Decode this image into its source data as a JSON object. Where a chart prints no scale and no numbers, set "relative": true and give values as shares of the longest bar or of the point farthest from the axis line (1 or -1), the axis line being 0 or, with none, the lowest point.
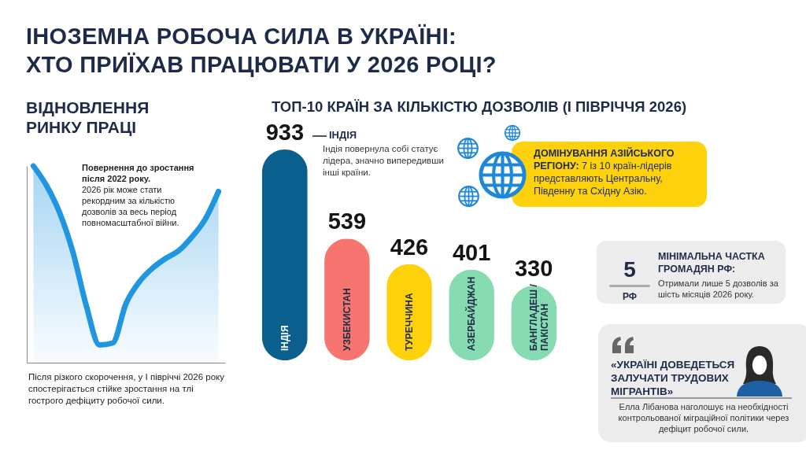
{
  "chart_data": [
    {
      "type": "area",
      "title": "ВІДНОВЛЕННЯ РИНКУ ПРАЦІ",
      "categories": [
        null,
        null,
        null,
        null,
        null,
        null,
        null,
        null,
        null,
        null,
        null,
        null,
        null,
        null,
        null
      ],
      "values": [
        1.0,
        0.9,
        0.76,
        0.56,
        0.29,
        0.09,
        0.1,
        0.3,
        0.41,
        0.48,
        0.53,
        0.57,
        0.64,
        0.73,
        0.87
      ],
      "color": "#2196e0",
      "relative": true,
      "annotations": [
        "Повернення до зростання після 2022 року.",
        "2026 рік може стати рекордним за кількістю дозволів за весь період повномасштабної війни.",
        "Після різкого скорочення, у І півріччі 2026 року спостерігається стійке зростання на тлі гострого дефіциту робочої сили."
      ]
    },
    {
      "type": "bar",
      "title": "ТОП-10 КРАЇН ЗА КІЛЬКІСТЮ ДОЗВОЛІВ (І ПІВРІЧЧЯ 2026)",
      "categories": [
        "ІНДІЯ",
        "УЗБЕКИСТАН",
        "ТУРЕЧЧИНА",
        "АЗЕРБАЙДЖАН",
        "БАНГЛАДЕШ / ПАКІСТАН"
      ],
      "values": [
        933,
        539,
        426,
        401,
        330
      ],
      "colors": [
        "#0b5f8c",
        "#f6766f",
        "#fdd10c",
        "#86dcb0",
        "#86dcb0"
      ],
      "data_labels": true,
      "annotations": [
        "ІНДІЯ",
        "Індія повернула собі статує лідера, значно випередивши інші країни."
      ]
    },
    {
      "type": "other",
      "title": "ІНОЗЕМНА РОБОЧА СИЛА В УКРАЇНІ: ХТО ПРИЇХАВ ПРАЦЮВАТИ У 2026 РОЦІ?",
      "annotations": [
        "ДОМІНУВАННЯ АЗІЙСЬКОГО РЕГІОНУ:",
        "7 із 10 країн-лідерів представляють Центральну, Південну та Східну Азію.",
        "5",
        "РФ",
        "МІНІМАЛЬНА ЧАСТКА ГРОМАДЯН РФ:",
        "Отримали лише 5 дозволів за шість місяців 2026 року.",
        "«УКРАЇНІ ДОВЕДЕТЬСЯ ЗАЛУЧАТИ ТРУДОВИХ МІГРАНТІВ»",
        "Елла Лібанова наголошує на необхідності контрольованої міграційної політики через дефіцит робочої сили."
      ]
    }
  ]
}
